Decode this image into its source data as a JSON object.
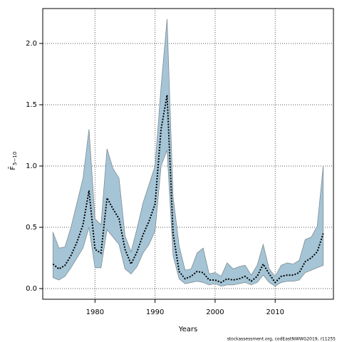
{
  "chart_data": {
    "type": "band_line",
    "xlabel": "Years",
    "ylabel": "F̄",
    "ylabel_subscript": "5−10",
    "footnote": "stockassessment.org, codEastNWWG2019, r11255",
    "x": [
      1973,
      1974,
      1975,
      1976,
      1977,
      1978,
      1979,
      1980,
      1981,
      1982,
      1983,
      1984,
      1985,
      1986,
      1987,
      1988,
      1989,
      1990,
      1991,
      1992,
      1993,
      1994,
      1995,
      1996,
      1997,
      1998,
      1999,
      2000,
      2001,
      2002,
      2003,
      2004,
      2005,
      2006,
      2007,
      2008,
      2009,
      2010,
      2011,
      2012,
      2013,
      2014,
      2015,
      2016,
      2017,
      2018
    ],
    "values": [
      0.2,
      0.16,
      0.19,
      0.27,
      0.38,
      0.52,
      0.8,
      0.32,
      0.29,
      0.74,
      0.65,
      0.57,
      0.32,
      0.2,
      0.3,
      0.44,
      0.55,
      0.69,
      1.3,
      1.58,
      0.45,
      0.14,
      0.08,
      0.1,
      0.14,
      0.13,
      0.07,
      0.07,
      0.05,
      0.08,
      0.07,
      0.08,
      0.1,
      0.06,
      0.1,
      0.2,
      0.12,
      0.05,
      0.1,
      0.11,
      0.11,
      0.13,
      0.22,
      0.25,
      0.3,
      0.45
    ],
    "upper": [
      0.46,
      0.33,
      0.34,
      0.5,
      0.7,
      0.9,
      1.3,
      0.57,
      0.52,
      1.14,
      0.98,
      0.9,
      0.43,
      0.3,
      0.49,
      0.7,
      0.85,
      1.0,
      1.65,
      2.2,
      0.75,
      0.35,
      0.15,
      0.16,
      0.29,
      0.33,
      0.12,
      0.13,
      0.1,
      0.21,
      0.16,
      0.18,
      0.19,
      0.11,
      0.19,
      0.36,
      0.16,
      0.1,
      0.19,
      0.21,
      0.2,
      0.23,
      0.4,
      0.42,
      0.51,
      1.0
    ],
    "lower": [
      0.09,
      0.07,
      0.1,
      0.17,
      0.25,
      0.33,
      0.5,
      0.17,
      0.17,
      0.48,
      0.42,
      0.36,
      0.16,
      0.12,
      0.18,
      0.29,
      0.36,
      0.47,
      1.0,
      1.13,
      0.27,
      0.08,
      0.04,
      0.05,
      0.06,
      0.05,
      0.03,
      0.04,
      0.02,
      0.03,
      0.03,
      0.04,
      0.05,
      0.03,
      0.05,
      0.11,
      0.05,
      0.02,
      0.05,
      0.06,
      0.06,
      0.07,
      0.13,
      0.15,
      0.17,
      0.19
    ],
    "band_color": "#a5c5d6",
    "line_color": "#000000",
    "xlim": [
      1971.3,
      2019.7
    ],
    "ylim": [
      -0.087,
      2.285
    ],
    "xticks": [
      1980,
      1990,
      2000,
      2010
    ],
    "yticks": [
      {
        "value": 0,
        "label": "0.0"
      },
      0.5,
      {
        "value": 1,
        "label": "1.0"
      },
      1.5,
      {
        "value": 2,
        "label": "2.0"
      }
    ],
    "grid": true
  }
}
